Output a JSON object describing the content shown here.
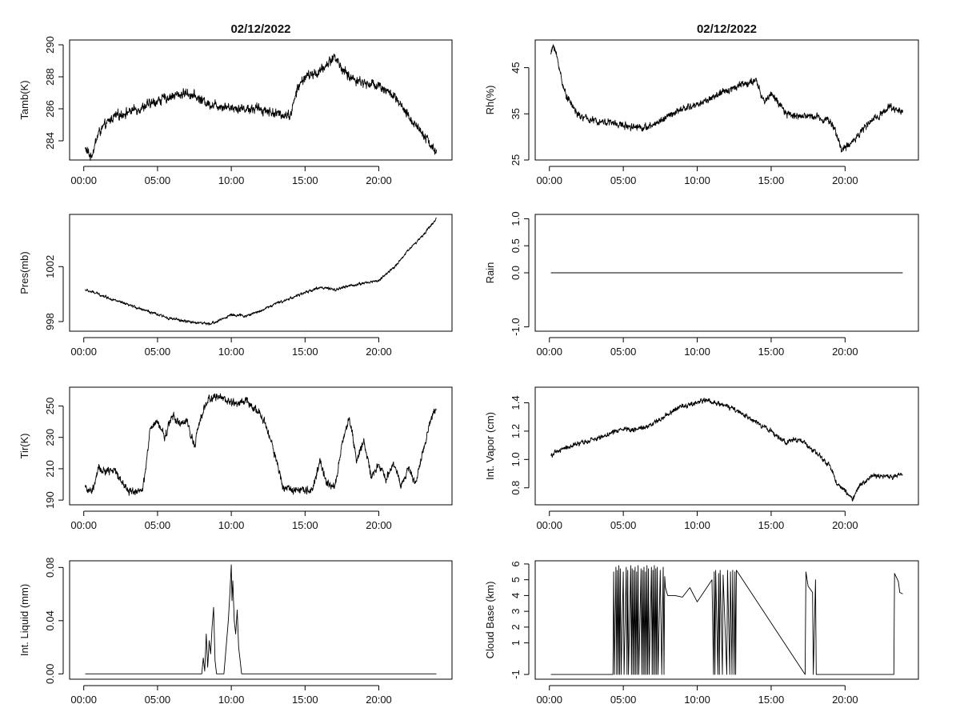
{
  "chart_data": [
    {
      "type": "line",
      "panel": "tamb",
      "title": "02/12/2022",
      "ylabel": "Tamb(K)",
      "xlim": [
        0,
        24
      ],
      "ylim": [
        282.8,
        290.3
      ],
      "x_ticks": [
        0,
        5,
        10,
        15,
        20
      ],
      "x_tick_labels": [
        "00:00",
        "05:00",
        "10:00",
        "15:00",
        "20:00"
      ],
      "y_ticks": [
        284,
        286,
        288,
        290
      ],
      "y_tick_labels": [
        "284",
        "286",
        "288",
        "290"
      ],
      "noise": 0.35,
      "x": [
        0.1,
        0.5,
        1.0,
        1.5,
        2.0,
        3.0,
        4.0,
        5.0,
        6.0,
        7.0,
        7.5,
        8.5,
        10.0,
        11.0,
        12.0,
        13.0,
        14.0,
        14.5,
        15.0,
        16.0,
        17.0,
        17.5,
        18.0,
        19.0,
        20.0,
        21.0,
        22.0,
        23.0,
        23.9
      ],
      "values": [
        283.5,
        283.0,
        284.5,
        285.0,
        285.5,
        285.8,
        286.1,
        286.5,
        286.8,
        287.0,
        286.8,
        286.3,
        286.1,
        286.0,
        286.0,
        285.7,
        285.6,
        287.3,
        288.0,
        288.3,
        289.3,
        288.5,
        288.0,
        287.6,
        287.5,
        286.8,
        285.5,
        284.5,
        283.2
      ]
    },
    {
      "type": "line",
      "panel": "rh",
      "title": "02/12/2022",
      "ylabel": "Rh(%)",
      "xlim": [
        0,
        24
      ],
      "ylim": [
        25,
        51
      ],
      "x_ticks": [
        0,
        5,
        10,
        15,
        20
      ],
      "x_tick_labels": [
        "00:00",
        "05:00",
        "10:00",
        "15:00",
        "20:00"
      ],
      "y_ticks": [
        25,
        35,
        45
      ],
      "y_tick_labels": [
        "25",
        "35",
        "45"
      ],
      "noise": 0.9,
      "x": [
        0.1,
        0.3,
        0.6,
        1.0,
        1.5,
        2.0,
        3.0,
        4.0,
        5.0,
        6.0,
        6.7,
        8.0,
        9.0,
        10.0,
        11.0,
        12.0,
        13.0,
        14.0,
        14.5,
        15.0,
        16.0,
        17.0,
        18.0,
        19.0,
        19.5,
        19.8,
        20.5,
        21.0,
        22.0,
        23.0,
        23.9
      ],
      "values": [
        48,
        50,
        46,
        40,
        37,
        34.5,
        33.5,
        33.2,
        32.5,
        32.2,
        32.0,
        34.5,
        36.0,
        37.0,
        38.5,
        40.0,
        41.5,
        42.0,
        37.5,
        39.5,
        35.0,
        34.5,
        34.5,
        33.5,
        30.0,
        27.0,
        29.0,
        31.0,
        34.0,
        36.5,
        35.5
      ]
    },
    {
      "type": "line",
      "panel": "pres",
      "ylabel": "Pres(mb)",
      "xlim": [
        0,
        24
      ],
      "ylim": [
        997.3,
        1005.8
      ],
      "x_ticks": [
        0,
        5,
        10,
        15,
        20
      ],
      "x_tick_labels": [
        "00:00",
        "05:00",
        "10:00",
        "15:00",
        "20:00"
      ],
      "y_ticks": [
        998,
        1002
      ],
      "y_tick_labels": [
        "998",
        "1002"
      ],
      "noise": 0.12,
      "x": [
        0.1,
        1.0,
        2.0,
        3.0,
        4.0,
        5.0,
        6.0,
        7.0,
        8.0,
        8.5,
        9.0,
        10.0,
        11.0,
        12.0,
        13.0,
        14.0,
        15.0,
        16.0,
        17.0,
        18.0,
        19.0,
        20.0,
        21.0,
        22.0,
        23.0,
        23.9
      ],
      "values": [
        1000.3,
        1000.0,
        999.6,
        999.2,
        998.9,
        998.5,
        998.2,
        998.0,
        997.9,
        997.8,
        998.0,
        998.5,
        998.4,
        998.8,
        999.3,
        999.7,
        1000.1,
        1000.5,
        1000.3,
        1000.6,
        1000.8,
        1001.0,
        1001.9,
        1003.2,
        1004.3,
        1005.5
      ]
    },
    {
      "type": "line",
      "panel": "rain",
      "ylabel": "Rain",
      "xlim": [
        0,
        24
      ],
      "ylim": [
        -1.08,
        1.08
      ],
      "x_ticks": [
        0,
        5,
        10,
        15,
        20
      ],
      "x_tick_labels": [
        "00:00",
        "05:00",
        "10:00",
        "15:00",
        "20:00"
      ],
      "y_ticks": [
        -1.0,
        0.0,
        0.5,
        1.0
      ],
      "y_tick_labels": [
        "-1.0",
        "0.0",
        "0.5",
        "1.0"
      ],
      "noise": 0,
      "x": [
        0.1,
        23.9
      ],
      "values": [
        0,
        0
      ]
    },
    {
      "type": "line",
      "panel": "tir",
      "ylabel": "Tir(K)",
      "xlim": [
        0,
        24
      ],
      "ylim": [
        187,
        262
      ],
      "x_ticks": [
        0,
        5,
        10,
        15,
        20
      ],
      "x_tick_labels": [
        "00:00",
        "05:00",
        "10:00",
        "15:00",
        "20:00"
      ],
      "y_ticks": [
        190,
        210,
        230,
        250
      ],
      "y_tick_labels": [
        "190",
        "210",
        "230",
        "250"
      ],
      "noise": 3,
      "x": [
        0.1,
        0.3,
        0.6,
        1.0,
        1.5,
        2.0,
        2.5,
        3.0,
        4.0,
        4.2,
        4.5,
        5.0,
        5.5,
        6.0,
        6.5,
        7.0,
        7.5,
        8.0,
        8.5,
        9.0,
        9.5,
        10.0,
        10.5,
        11.0,
        11.5,
        12.0,
        12.5,
        13.0,
        13.5,
        14.0,
        15.0,
        15.5,
        16.0,
        16.5,
        17.0,
        17.5,
        18.0,
        18.5,
        19.0,
        19.5,
        20.0,
        20.5,
        21.0,
        21.5,
        22.0,
        22.5,
        23.0,
        23.5,
        23.9
      ],
      "values": [
        200,
        195,
        196,
        210,
        208,
        210,
        203,
        196,
        196,
        210,
        235,
        240,
        230,
        245,
        238,
        240,
        225,
        245,
        255,
        256,
        255,
        252,
        252,
        254,
        248,
        245,
        233,
        218,
        198,
        197,
        197,
        196,
        215,
        200,
        198,
        225,
        243,
        215,
        228,
        205,
        212,
        203,
        215,
        200,
        210,
        200,
        222,
        240,
        250
      ]
    },
    {
      "type": "line",
      "panel": "vapor",
      "ylabel": "Int. Vapor (cm)",
      "xlim": [
        0,
        24
      ],
      "ylim": [
        0.68,
        1.51
      ],
      "x_ticks": [
        0,
        5,
        10,
        15,
        20
      ],
      "x_tick_labels": [
        "00:00",
        "05:00",
        "10:00",
        "15:00",
        "20:00"
      ],
      "y_ticks": [
        0.8,
        1.0,
        1.2,
        1.4
      ],
      "y_tick_labels": [
        "0.8",
        "1.0",
        "1.2",
        "1.4"
      ],
      "noise": 0.02,
      "x": [
        0.1,
        1.0,
        2.0,
        3.0,
        4.0,
        5.0,
        6.0,
        7.0,
        8.0,
        9.0,
        10.0,
        10.5,
        11.0,
        12.0,
        13.0,
        14.0,
        15.0,
        16.0,
        17.0,
        18.0,
        19.0,
        19.5,
        20.0,
        20.5,
        21.0,
        22.0,
        23.0,
        23.9
      ],
      "values": [
        1.03,
        1.08,
        1.11,
        1.14,
        1.18,
        1.22,
        1.21,
        1.25,
        1.32,
        1.38,
        1.4,
        1.42,
        1.41,
        1.38,
        1.32,
        1.26,
        1.2,
        1.12,
        1.14,
        1.05,
        0.95,
        0.82,
        0.78,
        0.72,
        0.82,
        0.89,
        0.87,
        0.9
      ]
    },
    {
      "type": "line",
      "panel": "liquid",
      "ylabel": "Int. Liquid (mm)",
      "xlim": [
        0,
        24
      ],
      "ylim": [
        -0.004,
        0.085
      ],
      "x_ticks": [
        0,
        5,
        10,
        15,
        20
      ],
      "x_tick_labels": [
        "00:00",
        "05:00",
        "10:00",
        "15:00",
        "20:00"
      ],
      "y_ticks": [
        0.0,
        0.04,
        0.08
      ],
      "y_tick_labels": [
        "0.00",
        "0.04",
        "0.08"
      ],
      "noise": 0,
      "x": [
        0.1,
        8.0,
        8.1,
        8.2,
        8.3,
        8.4,
        8.5,
        8.6,
        8.7,
        8.8,
        8.9,
        9.0,
        9.5,
        9.8,
        9.9,
        10.0,
        10.05,
        10.1,
        10.2,
        10.3,
        10.4,
        10.5,
        10.6,
        10.7,
        23.9
      ],
      "values": [
        0,
        0,
        0.012,
        0.002,
        0.03,
        0.005,
        0.025,
        0.015,
        0.035,
        0.05,
        0.01,
        0,
        0,
        0.04,
        0.06,
        0.082,
        0.055,
        0.07,
        0.04,
        0.03,
        0.048,
        0.02,
        0.01,
        0,
        0
      ]
    },
    {
      "type": "line",
      "panel": "cloud",
      "ylabel": "Cloud Base (km)",
      "xlim": [
        0,
        24
      ],
      "ylim": [
        -1.3,
        6.2
      ],
      "x_ticks": [
        0,
        5,
        10,
        15,
        20
      ],
      "x_tick_labels": [
        "00:00",
        "05:00",
        "10:00",
        "15:00",
        "20:00"
      ],
      "y_ticks": [
        -1,
        1,
        2,
        3,
        4,
        5,
        6
      ],
      "y_tick_labels": [
        "-1",
        "1",
        "2",
        "3",
        "4",
        "5",
        "6"
      ],
      "noise": 0,
      "x": [
        0.1,
        4.3,
        4.35,
        4.4,
        4.5,
        4.55,
        4.6,
        4.65,
        4.7,
        4.75,
        4.8,
        4.85,
        5.0,
        5.05,
        5.2,
        5.25,
        5.3,
        5.35,
        5.5,
        5.55,
        5.6,
        5.65,
        5.7,
        5.75,
        5.8,
        5.85,
        5.9,
        5.95,
        6.0,
        6.05,
        6.2,
        6.25,
        6.3,
        6.35,
        6.4,
        6.45,
        6.5,
        6.55,
        6.6,
        6.65,
        6.7,
        6.75,
        6.9,
        6.95,
        7.0,
        7.05,
        7.1,
        7.15,
        7.2,
        7.25,
        7.3,
        7.35,
        7.5,
        7.6,
        7.7,
        7.75,
        7.8,
        7.85,
        8.0,
        8.5,
        9.0,
        9.5,
        10.0,
        10.5,
        11.0,
        11.1,
        11.15,
        11.2,
        11.25,
        11.4,
        11.45,
        11.5,
        11.55,
        11.7,
        11.75,
        12.0,
        12.05,
        12.2,
        12.25,
        12.35,
        12.4,
        12.5,
        12.55,
        12.6,
        12.65,
        17.3,
        17.35,
        17.5,
        17.8,
        17.85,
        18.0,
        18.05,
        23.3,
        23.35,
        23.6,
        23.7,
        23.9
      ],
      "values": [
        -1,
        -1,
        5.5,
        -1,
        5.8,
        -1,
        5.6,
        -1,
        5.9,
        -1,
        5.7,
        -1,
        5.5,
        -1,
        5.8,
        -1,
        5.6,
        -1,
        5.9,
        -1,
        5.7,
        -1,
        5.6,
        -1,
        5.8,
        -1,
        5.5,
        -1,
        5.9,
        -1,
        5.7,
        -1,
        5.6,
        -1,
        5.8,
        -1,
        5.5,
        -1,
        5.9,
        -1,
        5.7,
        -1,
        5.8,
        -1,
        5.6,
        -1,
        5.9,
        -1,
        5.7,
        -1,
        5.8,
        -1,
        5.6,
        -1,
        5.8,
        -1,
        5.2,
        4.5,
        4.0,
        4.0,
        3.9,
        4.5,
        3.6,
        4.3,
        5.0,
        -1,
        5.5,
        -1,
        5.6,
        -1,
        5.4,
        -1,
        5.6,
        -1,
        5.3,
        -1,
        5.6,
        -1,
        5.5,
        -1,
        5.6,
        -1,
        5.5,
        -1,
        5.6,
        -1,
        5.5,
        4.6,
        4.2,
        -1,
        5.0,
        -1,
        -1,
        5.4,
        4.9,
        4.2,
        4.1
      ]
    }
  ]
}
